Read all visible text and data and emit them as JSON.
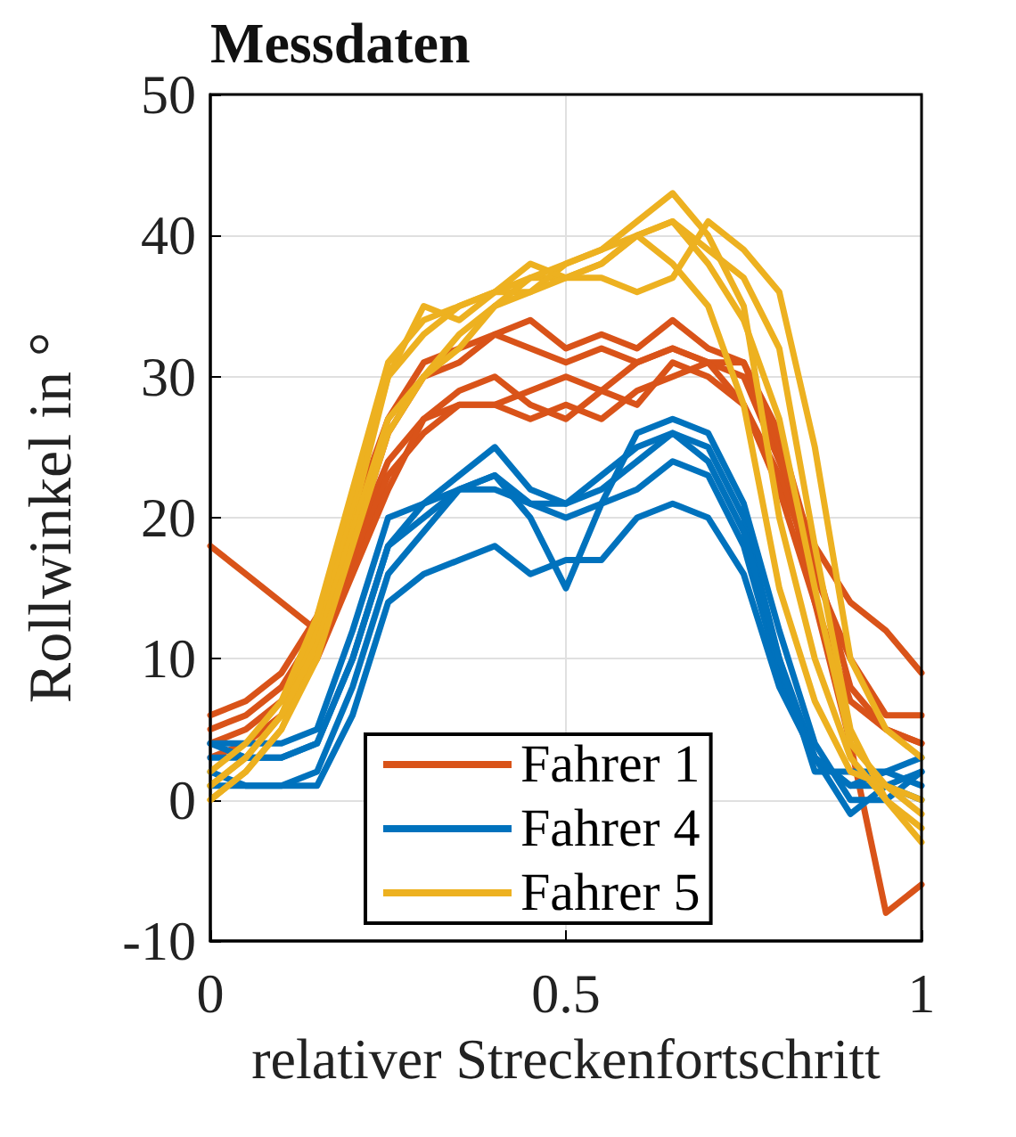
{
  "chart_data": {
    "type": "line",
    "title": "Messdaten",
    "xlabel": "relativer Streckenfortschritt",
    "ylabel": "Rollwinkel in °",
    "x": [
      0,
      0.05,
      0.1,
      0.15,
      0.2,
      0.25,
      0.3,
      0.35,
      0.4,
      0.45,
      0.5,
      0.55,
      0.6,
      0.65,
      0.7,
      0.75,
      0.8,
      0.85,
      0.9,
      0.95,
      1
    ],
    "xlim": [
      0,
      1
    ],
    "xticks": [
      0,
      0.5,
      1
    ],
    "ylim": [
      -10,
      50
    ],
    "yticks": [
      -10,
      0,
      10,
      20,
      30,
      40,
      50
    ],
    "grid": true,
    "legend": "bottom",
    "line_style": "solid",
    "marker": "none",
    "series": [
      {
        "name": "Fahrer 1",
        "color": "#d95319",
        "values": [
          18,
          16,
          14,
          12,
          18,
          26,
          30,
          31,
          33,
          32,
          31,
          32,
          31,
          32,
          31,
          30,
          24,
          18,
          14,
          12,
          9
        ]
      },
      {
        "color": "#d95319",
        "values": [
          6,
          7,
          9,
          13,
          20,
          27,
          31,
          32,
          33,
          34,
          32,
          33,
          32,
          34,
          32,
          31,
          25,
          14,
          4,
          -8,
          -6
        ]
      },
      {
        "color": "#d95319",
        "values": [
          5,
          6,
          8,
          12,
          18,
          24,
          27,
          28,
          28,
          27,
          28,
          27,
          29,
          30,
          31,
          31,
          26,
          17,
          8,
          5,
          4
        ]
      },
      {
        "color": "#d95319",
        "values": [
          4,
          5,
          7,
          11,
          17,
          23,
          26,
          28,
          28,
          29,
          30,
          29,
          31,
          32,
          31,
          28,
          23,
          16,
          10,
          6,
          6
        ]
      },
      {
        "color": "#d95319",
        "values": [
          3,
          4,
          6,
          10,
          16,
          22,
          27,
          29,
          30,
          28,
          27,
          29,
          28,
          31,
          30,
          28,
          22,
          14,
          7,
          5,
          4
        ]
      },
      {
        "name": "Fahrer 4",
        "color": "#0072bd",
        "values": [
          4,
          4,
          4,
          5,
          12,
          20,
          21,
          23,
          25,
          22,
          21,
          23,
          25,
          26,
          25,
          20,
          10,
          3,
          -1,
          1,
          2
        ]
      },
      {
        "color": "#0072bd",
        "values": [
          3,
          3,
          3,
          4,
          10,
          18,
          21,
          22,
          23,
          20,
          15,
          21,
          26,
          27,
          26,
          21,
          12,
          4,
          0,
          0,
          2
        ]
      },
      {
        "color": "#0072bd",
        "values": [
          2,
          1,
          1,
          2,
          8,
          16,
          19,
          22,
          23,
          21,
          20,
          21,
          22,
          24,
          23,
          18,
          9,
          3,
          1,
          2,
          3
        ]
      },
      {
        "color": "#0072bd",
        "values": [
          1,
          1,
          1,
          1,
          6,
          14,
          16,
          17,
          18,
          16,
          17,
          17,
          20,
          21,
          20,
          16,
          8,
          3,
          1,
          1,
          0
        ]
      },
      {
        "color": "#0072bd",
        "values": [
          4,
          3,
          3,
          4,
          10,
          18,
          20,
          22,
          22,
          21,
          21,
          22,
          24,
          26,
          24,
          19,
          10,
          2,
          2,
          2,
          1
        ]
      },
      {
        "name": "Fahrer 5",
        "color": "#edb120",
        "values": [
          0,
          2,
          5,
          11,
          20,
          30,
          35,
          34,
          36,
          37,
          37,
          38,
          40,
          41,
          39,
          37,
          32,
          18,
          5,
          0,
          -3
        ]
      },
      {
        "color": "#edb120",
        "values": [
          1,
          3,
          6,
          12,
          21,
          30,
          33,
          35,
          36,
          36,
          38,
          39,
          41,
          43,
          40,
          35,
          20,
          10,
          3,
          0,
          -2
        ]
      },
      {
        "color": "#edb120",
        "values": [
          2,
          4,
          7,
          13,
          22,
          31,
          34,
          35,
          36,
          38,
          37,
          37,
          36,
          37,
          41,
          39,
          36,
          25,
          10,
          5,
          3
        ]
      },
      {
        "color": "#edb120",
        "values": [
          1,
          3,
          6,
          11,
          19,
          27,
          30,
          32,
          35,
          37,
          38,
          39,
          40,
          38,
          35,
          28,
          15,
          7,
          2,
          1,
          -1
        ]
      },
      {
        "color": "#edb120",
        "values": [
          0,
          2,
          5,
          10,
          18,
          26,
          30,
          33,
          35,
          36,
          37,
          38,
          40,
          41,
          38,
          34,
          27,
          15,
          4,
          1,
          0
        ]
      }
    ]
  }
}
